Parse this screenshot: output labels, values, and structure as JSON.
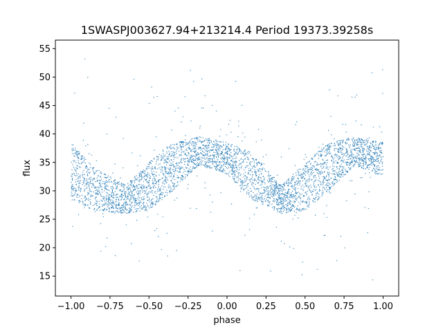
{
  "chart_data": {
    "type": "scatter",
    "title": "1SWASPJ003627.94+213214.4 Period 19373.39258s",
    "xlabel": "phase",
    "ylabel": "flux",
    "xlim": [
      -1.1,
      1.1
    ],
    "ylim": [
      11.5,
      56.5
    ],
    "xticks": [
      -1.0,
      -0.75,
      -0.5,
      -0.25,
      0.0,
      0.25,
      0.5,
      0.75,
      1.0
    ],
    "xtick_labels": [
      "−1.00",
      "−0.75",
      "−0.50",
      "−0.25",
      "0.00",
      "0.25",
      "0.50",
      "0.75",
      "1.00"
    ],
    "yticks": [
      15,
      20,
      25,
      30,
      35,
      40,
      45,
      50,
      55
    ],
    "ytick_labels": [
      "15",
      "20",
      "25",
      "30",
      "35",
      "40",
      "45",
      "50",
      "55"
    ],
    "grid": false,
    "marker_color": "#1f77b4",
    "series": [
      {
        "name": "",
        "description_points": [
          {
            "phase": -1.0,
            "flux_center": 33.5,
            "flux_spread": [
              28.5,
              38.5
            ]
          },
          {
            "phase": -0.85,
            "flux_center": 29.5,
            "flux_spread": [
              26.5,
              34.0
            ]
          },
          {
            "phase": -0.65,
            "flux_center": 28.0,
            "flux_spread": [
              26.0,
              31.0
            ]
          },
          {
            "phase": -0.5,
            "flux_center": 30.0,
            "flux_spread": [
              26.5,
              35.0
            ]
          },
          {
            "phase": -0.35,
            "flux_center": 34.5,
            "flux_spread": [
              30.0,
              38.5
            ]
          },
          {
            "phase": -0.18,
            "flux_center": 37.0,
            "flux_spread": [
              34.5,
              39.5
            ]
          },
          {
            "phase": 0.0,
            "flux_center": 36.5,
            "flux_spread": [
              33.0,
              38.5
            ]
          },
          {
            "phase": 0.15,
            "flux_center": 33.0,
            "flux_spread": [
              28.5,
              37.0
            ]
          },
          {
            "phase": 0.35,
            "flux_center": 28.0,
            "flux_spread": [
              26.0,
              31.0
            ]
          },
          {
            "phase": 0.5,
            "flux_center": 30.0,
            "flux_spread": [
              26.5,
              35.0
            ]
          },
          {
            "phase": 0.65,
            "flux_center": 34.5,
            "flux_spread": [
              30.0,
              38.5
            ]
          },
          {
            "phase": 0.82,
            "flux_center": 37.0,
            "flux_spread": [
              34.5,
              39.5
            ]
          },
          {
            "phase": 1.0,
            "flux_center": 36.0,
            "flux_spread": [
              32.5,
              38.5
            ]
          }
        ]
      }
    ]
  }
}
